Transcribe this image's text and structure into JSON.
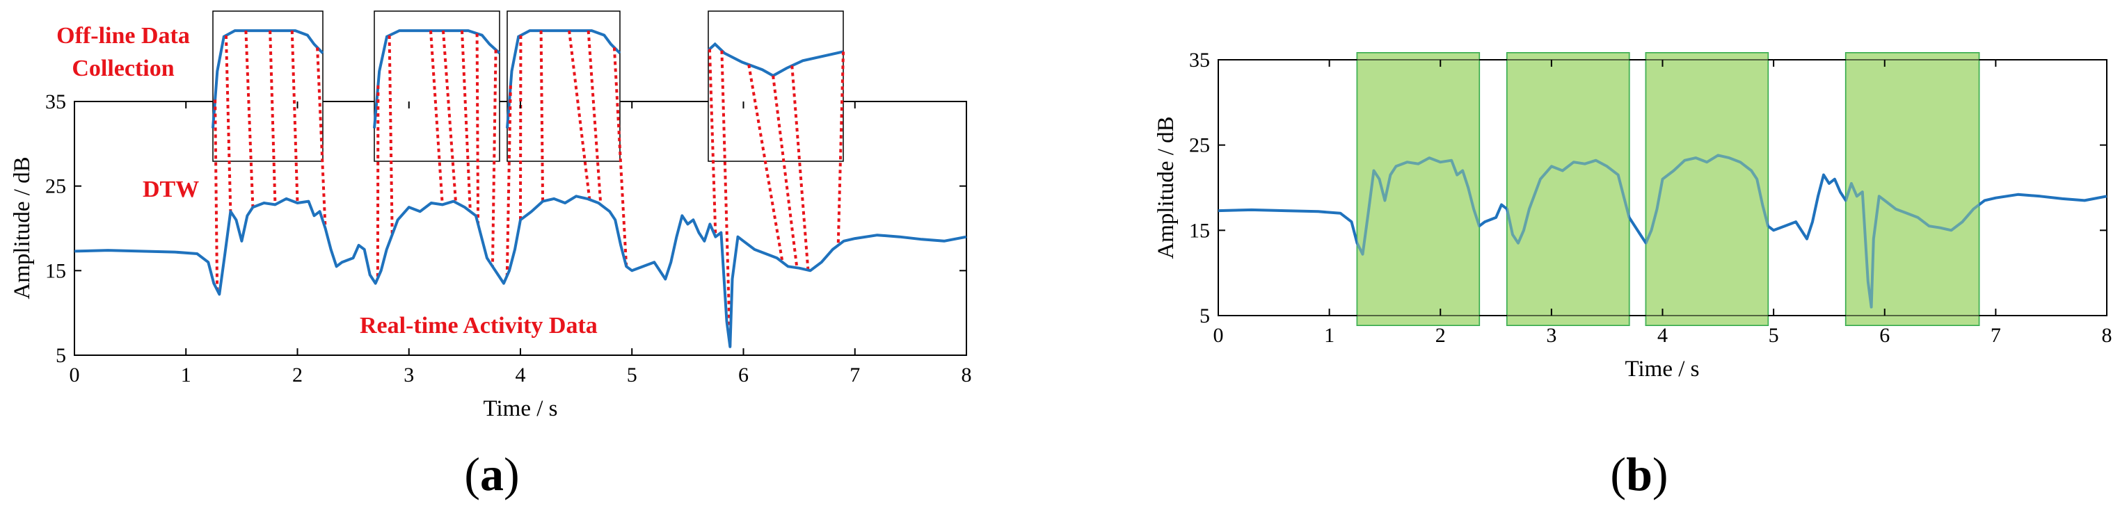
{
  "chart_data": [
    {
      "type": "line",
      "panel_label": "a",
      "xlabel": "Time / s",
      "ylabel": "Amplitude / dB",
      "xlim": [
        0,
        8
      ],
      "ylim": [
        5,
        35
      ],
      "xticks": [
        0,
        1,
        2,
        3,
        4,
        5,
        6,
        7,
        8
      ],
      "yticks": [
        5,
        15,
        25,
        35
      ],
      "grid": false,
      "series": [
        {
          "color": "#1f72bd",
          "x": [
            0,
            0.3,
            0.6,
            0.9,
            1.1,
            1.2,
            1.25,
            1.3,
            1.35,
            1.4,
            1.45,
            1.5,
            1.55,
            1.6,
            1.7,
            1.8,
            1.9,
            2.0,
            2.1,
            2.15,
            2.2,
            2.25,
            2.3,
            2.35,
            2.4,
            2.5,
            2.55,
            2.6,
            2.65,
            2.7,
            2.75,
            2.8,
            2.9,
            3.0,
            3.1,
            3.2,
            3.3,
            3.4,
            3.5,
            3.6,
            3.65,
            3.7,
            3.75,
            3.8,
            3.85,
            3.9,
            3.95,
            4.0,
            4.1,
            4.2,
            4.3,
            4.4,
            4.5,
            4.6,
            4.7,
            4.8,
            4.85,
            4.9,
            4.95,
            5.0,
            5.1,
            5.2,
            5.3,
            5.35,
            5.4,
            5.45,
            5.5,
            5.55,
            5.6,
            5.65,
            5.7,
            5.75,
            5.8,
            5.85,
            5.88,
            5.9,
            5.95,
            6.0,
            6.1,
            6.2,
            6.3,
            6.4,
            6.5,
            6.6,
            6.7,
            6.8,
            6.9,
            7.0,
            7.2,
            7.4,
            7.6,
            7.8,
            8.0
          ],
          "y": [
            17.3,
            17.4,
            17.3,
            17.2,
            17.0,
            16.0,
            13.5,
            12.2,
            17.0,
            22.0,
            21.0,
            18.5,
            21.5,
            22.5,
            23.0,
            22.8,
            23.5,
            23.0,
            23.2,
            21.5,
            22.0,
            20.0,
            17.5,
            15.5,
            16.0,
            16.5,
            18.0,
            17.5,
            14.5,
            13.5,
            15.0,
            17.5,
            21.0,
            22.5,
            22.0,
            23.0,
            22.8,
            23.2,
            22.5,
            21.5,
            19.0,
            16.5,
            15.5,
            14.5,
            13.5,
            15.0,
            17.5,
            21.0,
            22.0,
            23.2,
            23.5,
            23.0,
            23.8,
            23.5,
            23.0,
            22.0,
            21.0,
            18.0,
            15.5,
            15.0,
            15.5,
            16.0,
            14.0,
            16.0,
            19.0,
            21.5,
            20.5,
            21.0,
            19.5,
            18.5,
            20.5,
            19.0,
            19.5,
            9.0,
            6.0,
            14.0,
            19.0,
            18.5,
            17.5,
            17.0,
            16.5,
            15.5,
            15.3,
            15.0,
            16.0,
            17.5,
            18.5,
            18.8,
            19.2,
            19.0,
            18.7,
            18.5,
            19.0
          ]
        }
      ],
      "annotations": [
        "Off-line Data Collection",
        "DTW",
        "Real-time Activity Data"
      ]
    },
    {
      "type": "line",
      "panel_label": "b",
      "xlabel": "Time / s",
      "ylabel": "Amplitude / dB",
      "xlim": [
        0,
        8
      ],
      "ylim": [
        5,
        35
      ],
      "xticks": [
        0,
        1,
        2,
        3,
        4,
        5,
        6,
        7,
        8
      ],
      "yticks": [
        5,
        15,
        25,
        35
      ],
      "grid": false,
      "highlight_color": "#b5df8e",
      "highlight_regions": [
        [
          1.25,
          2.35
        ],
        [
          2.6,
          3.7
        ],
        [
          3.85,
          4.95
        ],
        [
          5.65,
          6.85
        ]
      ],
      "series": [
        {
          "color": "#1f72bd",
          "x": [
            0,
            0.3,
            0.6,
            0.9,
            1.1,
            1.2,
            1.25,
            1.3,
            1.35,
            1.4,
            1.45,
            1.5,
            1.55,
            1.6,
            1.7,
            1.8,
            1.9,
            2.0,
            2.1,
            2.15,
            2.2,
            2.25,
            2.3,
            2.35,
            2.4,
            2.5,
            2.55,
            2.6,
            2.65,
            2.7,
            2.75,
            2.8,
            2.9,
            3.0,
            3.1,
            3.2,
            3.3,
            3.4,
            3.5,
            3.6,
            3.65,
            3.7,
            3.75,
            3.8,
            3.85,
            3.9,
            3.95,
            4.0,
            4.1,
            4.2,
            4.3,
            4.4,
            4.5,
            4.6,
            4.7,
            4.8,
            4.85,
            4.9,
            4.95,
            5.0,
            5.1,
            5.2,
            5.3,
            5.35,
            5.4,
            5.45,
            5.5,
            5.55,
            5.6,
            5.65,
            5.7,
            5.75,
            5.8,
            5.85,
            5.88,
            5.9,
            5.95,
            6.0,
            6.1,
            6.2,
            6.3,
            6.4,
            6.5,
            6.6,
            6.7,
            6.8,
            6.9,
            7.0,
            7.2,
            7.4,
            7.6,
            7.8,
            8.0
          ],
          "y": [
            17.3,
            17.4,
            17.3,
            17.2,
            17.0,
            16.0,
            13.5,
            12.2,
            17.0,
            22.0,
            21.0,
            18.5,
            21.5,
            22.5,
            23.0,
            22.8,
            23.5,
            23.0,
            23.2,
            21.5,
            22.0,
            20.0,
            17.5,
            15.5,
            16.0,
            16.5,
            18.0,
            17.5,
            14.5,
            13.5,
            15.0,
            17.5,
            21.0,
            22.5,
            22.0,
            23.0,
            22.8,
            23.2,
            22.5,
            21.5,
            19.0,
            16.5,
            15.5,
            14.5,
            13.5,
            15.0,
            17.5,
            21.0,
            22.0,
            23.2,
            23.5,
            23.0,
            23.8,
            23.5,
            23.0,
            22.0,
            21.0,
            18.0,
            15.5,
            15.0,
            15.5,
            16.0,
            14.0,
            16.0,
            19.0,
            21.5,
            20.5,
            21.0,
            19.5,
            18.5,
            20.5,
            19.0,
            19.5,
            9.0,
            6.0,
            14.0,
            19.0,
            18.5,
            17.5,
            17.0,
            16.5,
            15.5,
            15.3,
            15.0,
            16.0,
            17.5,
            18.5,
            18.8,
            19.2,
            19.0,
            18.7,
            18.5,
            19.0
          ]
        }
      ]
    }
  ]
}
